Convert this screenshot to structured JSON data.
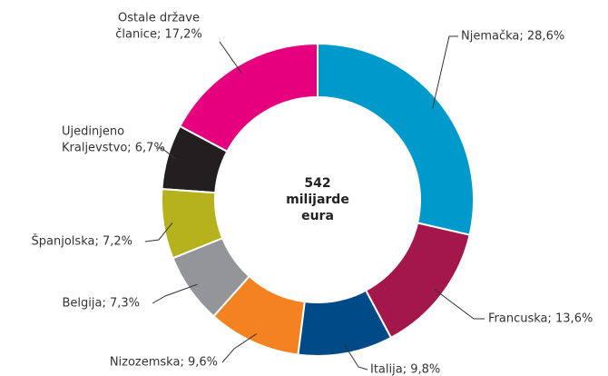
{
  "chart_data": {
    "type": "donut",
    "center_label": [
      "542",
      "milijarde",
      "eura"
    ],
    "values": [
      28.6,
      13.6,
      9.8,
      9.6,
      7.3,
      7.2,
      6.7,
      17.2
    ],
    "value_labels": [
      [
        "Njemačka; 28,6%"
      ],
      [
        "Francuska; 13,6%"
      ],
      [
        "Italija; 9,8%"
      ],
      [
        "Nizozemska; 9,6%"
      ],
      [
        "Belgija; 7,3%"
      ],
      [
        "Španjolska; 7,2%"
      ],
      [
        "Ujedinjeno",
        "Kraljevstvo; 6,7%"
      ],
      [
        "Ostale države",
        "članice; 17,2%"
      ]
    ],
    "colors": [
      "#0099cc",
      "#a3174b",
      "#004a87",
      "#f58220",
      "#939598",
      "#b5b21e",
      "#231f20",
      "#e6007e"
    ]
  }
}
